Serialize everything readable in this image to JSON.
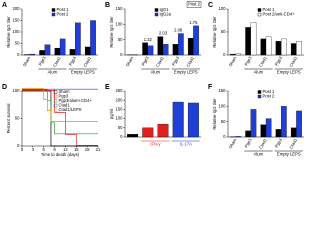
{
  "chart_data": [
    {
      "label": "A",
      "type": "bar",
      "ylabel": "Relative IgG titer",
      "categories": [
        "Sham",
        "Pgp3",
        "Ctad1",
        "Pgp3",
        "Ctad1"
      ],
      "groups": [
        {
          "name": "Alum",
          "from": 1,
          "to": 2
        },
        {
          "name": "Empty LEPS",
          "from": 3,
          "to": 4
        }
      ],
      "series": [
        {
          "name": "Post 1",
          "color": "#000000",
          "values": [
            2,
            20,
            30,
            25,
            35
          ]
        },
        {
          "name": "Post 2",
          "color": "#1f3fd6",
          "values": [
            4,
            45,
            70,
            140,
            150
          ]
        }
      ],
      "ylim": [
        0,
        200
      ],
      "yticks": [
        0,
        50,
        100,
        150,
        200
      ]
    },
    {
      "label": "B",
      "type": "bar",
      "ylabel": "Relative IgG titer",
      "note": "Post 2",
      "categories": [
        "Sham",
        "Pgp3",
        "Ctad1",
        "Pgp3",
        "Ctad1"
      ],
      "groups": [
        {
          "name": "Alum",
          "from": 1,
          "to": 2
        },
        {
          "name": "Empty LEPS",
          "from": 3,
          "to": 4
        }
      ],
      "series": [
        {
          "name": "IgG1",
          "color": "#000000",
          "values": [
            1,
            40,
            60,
            35,
            55
          ]
        },
        {
          "name": "IgG2a",
          "color": "#1f3fd6",
          "values": [
            1,
            30,
            35,
            70,
            95
          ]
        }
      ],
      "annotations": [
        {
          "text": "1.22",
          "category": 1
        },
        {
          "text": "2.03",
          "category": 2
        },
        {
          "text": "2.08",
          "category": 3
        },
        {
          "text": "1.75",
          "category": 4
        }
      ],
      "ylim": [
        0,
        150
      ],
      "yticks": [
        0,
        50,
        100,
        150
      ]
    },
    {
      "label": "C",
      "type": "bar",
      "ylabel": "Relative IgG titer",
      "categories": [
        "Sham",
        "Pgp3",
        "Ctad1",
        "Pgp3",
        "Ctad1"
      ],
      "groups": [
        {
          "name": "Alum",
          "from": 1,
          "to": 2
        },
        {
          "name": "Empty LEPS",
          "from": 3,
          "to": 4
        }
      ],
      "series": [
        {
          "name": "Post 1",
          "color": "#000000",
          "values": [
            2,
            60,
            35,
            30,
            25
          ]
        },
        {
          "name": "Post 2/anti-CD4+",
          "color": "#ffffff",
          "values": [
            3,
            70,
            40,
            35,
            30
          ]
        }
      ],
      "ylim": [
        0,
        100
      ],
      "yticks": [
        0,
        50,
        100
      ]
    },
    {
      "label": "D",
      "type": "line",
      "ylabel": "Percent survival",
      "xlabel": "Time to death (days)",
      "x": [
        0,
        3,
        6,
        7,
        8,
        9,
        12,
        15,
        18,
        21
      ],
      "series": [
        {
          "name": "Sham",
          "color": "#000000",
          "values": [
            100,
            100,
            100,
            100,
            0,
            0,
            0,
            0,
            0,
            0
          ]
        },
        {
          "name": "Pgp3",
          "color": "#e02020",
          "values": [
            100,
            100,
            100,
            100,
            100,
            60,
            20,
            0,
            0,
            0
          ]
        },
        {
          "name": "Pgp3/alum+CD4+",
          "color": "#1f9a3a",
          "values": [
            100,
            100,
            100,
            80,
            40,
            20,
            20,
            20,
            20,
            20
          ]
        },
        {
          "name": "Ctad1",
          "color": "#1f3fd6",
          "values": [
            100,
            100,
            100,
            100,
            100,
            100,
            100,
            100,
            100,
            100
          ]
        },
        {
          "name": "Ctad1/LEPS",
          "color": "#f08c00",
          "values": [
            100,
            100,
            80,
            60,
            40,
            40,
            40,
            40,
            40,
            40
          ]
        }
      ],
      "xlim": [
        0,
        21
      ],
      "xticks": [
        0,
        3,
        6,
        9,
        12,
        15,
        18,
        21
      ],
      "ylim": [
        0,
        100
      ],
      "yticks": [
        0,
        50,
        100
      ]
    },
    {
      "label": "E",
      "type": "bar",
      "ylabel": "pg/ml",
      "categories": [
        null,
        null,
        null,
        null,
        null
      ],
      "groups": [
        {
          "name": "IFN-γ",
          "from": 1,
          "to": 2,
          "color": "#e02020"
        },
        {
          "name": "IL-17A",
          "from": 3,
          "to": 4,
          "color": "#1f3fd6"
        }
      ],
      "series": [
        {
          "values": [
            15,
            50,
            70,
            190,
            185
          ],
          "colors": [
            "#000000",
            "#e02020",
            "#e02020",
            "#1f3fd6",
            "#1f3fd6"
          ]
        }
      ],
      "ylim": [
        0,
        250
      ],
      "yticks": [
        0,
        50,
        100,
        150,
        200,
        250
      ]
    },
    {
      "label": "F",
      "type": "bar",
      "ylabel": "Relative IgG titer",
      "categories": [
        "Sham",
        "Pgp3",
        "Ctad1",
        "Pgp3",
        "Ctad1"
      ],
      "groups": [
        {
          "name": "Alum",
          "from": 1,
          "to": 2
        },
        {
          "name": "Empty LEPS",
          "from": 3,
          "to": 4
        }
      ],
      "series": [
        {
          "name": "Post 1",
          "color": "#000000",
          "values": [
            1,
            20,
            40,
            25,
            30
          ]
        },
        {
          "name": "Post 2",
          "color": "#1f3fd6",
          "values": [
            2,
            90,
            60,
            100,
            85
          ]
        }
      ],
      "ylim": [
        0,
        150
      ],
      "yticks": [
        0,
        50,
        100,
        150
      ]
    }
  ]
}
